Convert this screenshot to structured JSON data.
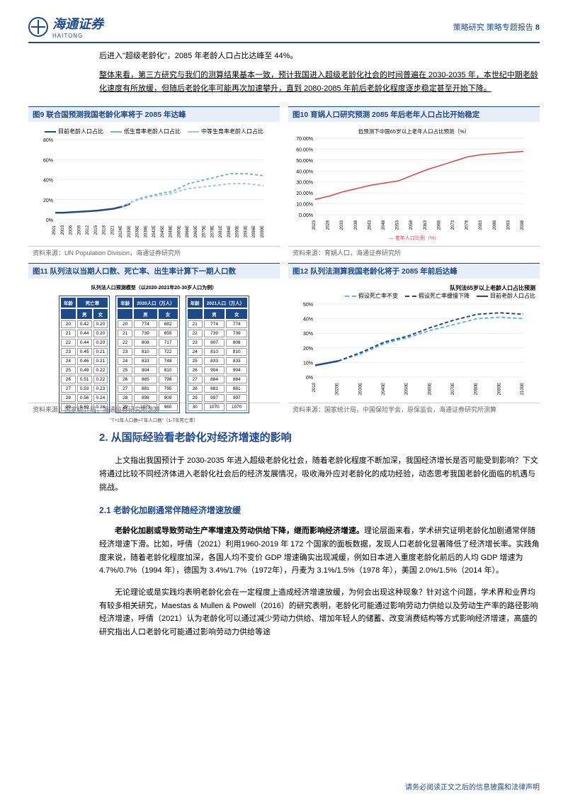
{
  "header": {
    "company_cn": "海通证券",
    "company_en": "HAITONG",
    "report_type": "策略研究 策略专题报告",
    "page": "8"
  },
  "intro": {
    "line1": "后进入\"超级老龄化\"，2085 年老龄人口占比达峰至 44%。",
    "line2": "整体来看，第三方研究与我们的测算结果基本一致，预计我国进入超级老龄化社会的时间普遍在 2030-2035 年，本世纪中期老龄化速度有所放缓，但随后老龄化率可能再次加速攀升，直到 2080-2085 年前后老龄化程度逐步稳定甚至开始下降。"
  },
  "fig9": {
    "title": "图9  联合国预测我国老龄化率将于 2085 年达峰",
    "source": "资料来源：UN Population Division，海通证券研究所",
    "legend": [
      "目前老龄人口占比",
      "低生育率老龄人口占比",
      "中等生育率老龄人口占比"
    ],
    "colors": {
      "current": "#1e4a8c",
      "low": "#6bb5d8",
      "med": "#a8c5d8"
    },
    "ylim": [
      0,
      80
    ],
    "yticks": [
      0,
      20,
      40,
      60,
      80
    ],
    "xlabels": [
      "2001",
      "2003",
      "2006",
      "2009",
      "2012",
      "2015",
      "2018",
      "2021",
      "2024E",
      "2030E",
      "2036E",
      "2039E",
      "2042E",
      "2045E",
      "2048E",
      "2060E",
      "2066E",
      "2069E",
      "2075E",
      "2078E",
      "2081E",
      "2084E",
      "2090E",
      "2093E",
      "2096E",
      "2099E"
    ],
    "series": {
      "current": [
        7,
        7,
        7.5,
        8,
        8.5,
        9,
        10,
        11,
        13,
        16,
        null,
        null,
        null,
        null,
        null,
        null,
        null,
        null,
        null,
        null,
        null,
        null,
        null,
        null,
        null,
        null
      ],
      "low": [
        null,
        null,
        null,
        null,
        null,
        null,
        null,
        null,
        13,
        17,
        21,
        23,
        25,
        27,
        28,
        32,
        36,
        38,
        40,
        42,
        44,
        46,
        46,
        46,
        45,
        44
      ],
      "med": [
        null,
        null,
        null,
        null,
        null,
        null,
        null,
        null,
        13,
        17,
        20,
        22,
        24,
        25,
        26,
        29,
        31,
        32,
        33,
        34,
        35,
        36,
        36,
        36,
        35,
        34
      ]
    }
  },
  "fig10": {
    "title": "图10 育娲人口研究预测 2085 年后老年人口占比开始稳定",
    "source": "资料来源：育娲人口，海通证券研究所",
    "legend_note": "低预测下中国65岁以上老年人口占比预测（%）",
    "legend_bottom": "老年人口比例（%）",
    "color": "#d94545",
    "ylim": [
      0,
      70
    ],
    "yticks": [
      "0.00%",
      "10.00%",
      "20.00%",
      "30.00%",
      "40.00%",
      "50.00%",
      "60.00%",
      "70.00%"
    ],
    "xlabels": [
      "2023",
      "2028",
      "2033",
      "2038",
      "2043",
      "2048",
      "2053",
      "2058",
      "2063",
      "2068",
      "2073",
      "2078",
      "2083",
      "2088",
      "2093",
      "2098"
    ],
    "values": [
      14,
      17,
      21,
      24,
      27,
      29,
      31,
      36,
      41,
      45,
      49,
      53,
      55,
      56,
      57,
      58
    ]
  },
  "fig11": {
    "title": "图11 队列法以当期人口数、死亡率、出生率计算下一期人口数",
    "source": "资料来源：国家统计局，海通证券研究所测算",
    "caption": "队列法人口预测模型（以2020-2021年20-30岁人口为例）",
    "table1": {
      "headers": [
        "年龄",
        "死亡率",
        "男",
        "女"
      ],
      "rows": [
        [
          "20",
          "0.42",
          "0.20"
        ],
        [
          "21",
          "0.44",
          "0.20"
        ],
        [
          "22",
          "0.44",
          "0.20"
        ],
        [
          "23",
          "0.45",
          "0.21"
        ],
        [
          "24",
          "0.46",
          "0.21"
        ],
        [
          "25",
          "0.49",
          "0.22"
        ],
        [
          "26",
          "0.51",
          "0.22"
        ],
        [
          "27",
          "0.53",
          "0.23"
        ],
        [
          "28",
          "0.56",
          "0.24"
        ],
        [
          "29",
          "0.60",
          "0.24"
        ]
      ]
    },
    "table2": {
      "headers": [
        "年龄",
        "2020人口（万人）",
        "男",
        "女"
      ],
      "rows": [
        [
          "20",
          "774",
          "682"
        ],
        [
          "21",
          "739",
          "655"
        ],
        [
          "22",
          "808",
          "717"
        ],
        [
          "23",
          "810",
          "722"
        ],
        [
          "24",
          "833",
          "748"
        ],
        [
          "25",
          "904",
          "810"
        ],
        [
          "26",
          "885",
          "798"
        ],
        [
          "27",
          "881",
          "795"
        ],
        [
          "28",
          "998",
          "909"
        ],
        [
          "29",
          "1071",
          "980"
        ]
      ]
    },
    "table3": {
      "headers": [
        "年龄",
        "2021人口（万人）",
        "男",
        "女"
      ],
      "rows": [
        [
          "21",
          "774",
          "774"
        ],
        [
          "22",
          "739",
          "739"
        ],
        [
          "23",
          "807",
          "808"
        ],
        [
          "24",
          "810",
          "810"
        ],
        [
          "25",
          "833",
          "833"
        ],
        [
          "26",
          "904",
          "904"
        ],
        [
          "27",
          "884",
          "884"
        ],
        [
          "28",
          "881",
          "881"
        ],
        [
          "29",
          "997",
          "997"
        ],
        [
          "30",
          "1070",
          "1070"
        ]
      ]
    },
    "formula": "\"T+1年人口数=T年人口数\"（1-T年死亡率）"
  },
  "fig12": {
    "title": "图12 队列法测算我国老龄化将于 2085 年前后达峰",
    "source": "资料来源：国家统计局，中国保险学会，原保监会，海通证券研究所测算",
    "legend_title": "队列法65岁以上老龄人口占比预测",
    "legend": [
      "假设死亡率不变",
      "假设死亡率缓慢下降",
      "目前老龄人口占比"
    ],
    "colors": {
      "const": "#6bb5d8",
      "decline": "#1e4a8c",
      "current": "#1e4a8c"
    },
    "ylim": [
      0,
      50
    ],
    "yticks": [
      "0%",
      "10%",
      "20%",
      "30%",
      "40%",
      "50%"
    ],
    "xlabels": [
      "2010",
      "2020E",
      "2030E",
      "2040E",
      "2050E",
      "2060E",
      "2070E",
      "2080E",
      "2090E",
      "2100E"
    ],
    "series": {
      "current": [
        8,
        11,
        null,
        null,
        null,
        null,
        null,
        null,
        null,
        null
      ],
      "const": [
        null,
        11,
        16,
        23,
        27,
        32,
        36,
        40,
        41,
        40
      ],
      "decline": [
        null,
        11,
        17,
        24,
        28,
        34,
        39,
        43,
        44,
        43
      ]
    }
  },
  "section2": {
    "title": "2. 从国际经验看老龄化对经济增速的影响",
    "intro": "上文指出我国预计于 2030-2035 年进入超级老龄化社会，随着老龄化程度不断加深，我国经济增长是否可能受到影响？下文将通过比较不同经济体进入老龄化社会后的经济发展情况，吸收海外应对老龄化的成功经验，动态思考我国老龄化面临的机遇与挑战。"
  },
  "section21": {
    "title": "2.1 老龄化加剧通常伴随经济增速放缓",
    "p1_lead": "老龄化加剧或导致劳动生产率增速及劳动供给下降，继而影响经济增速。",
    "p1_rest": "理论层面来看，学术研究证明老龄化加剧通常伴随经济增速下滑。比如，呼倩（2021）利用1960-2019 年 172 个国家的面板数据，发现人口老龄化显著降低了经济增长率。实践角度来说，随着老龄化程度加深，各国人均不变价 GDP 增速确实出现减缓，例如日本进入重度老龄化前后的人均 GDP 增速为 4.7%/0.7%（1994 年），德国为 3.4%/1.7%（1972年），丹麦为 3.1%/1.5%（1978 年），美国 2.0%/1.5%（2014 年）。",
    "p2": "无论理论或是实践均表明老龄化会在一定程度上造成经济增速放缓，为何会出现这种现象？针对这个问题，学术界和业界均有较多相关研究，Maestas & Mullen & Powell（2016）的研究表明，老龄化可能通过影响劳动力供给以及劳动生产率的路径影响经济增速，呼倩（2021）认为老龄化可以通过减少劳动力供给、增加年轻人的储蓄、改变消费结构等方式影响经济增速，高盛的研究指出人口老龄化可能通过影响劳动力供给等途"
  },
  "footer": "请务必阅读正文之后的信息披露和法律声明"
}
